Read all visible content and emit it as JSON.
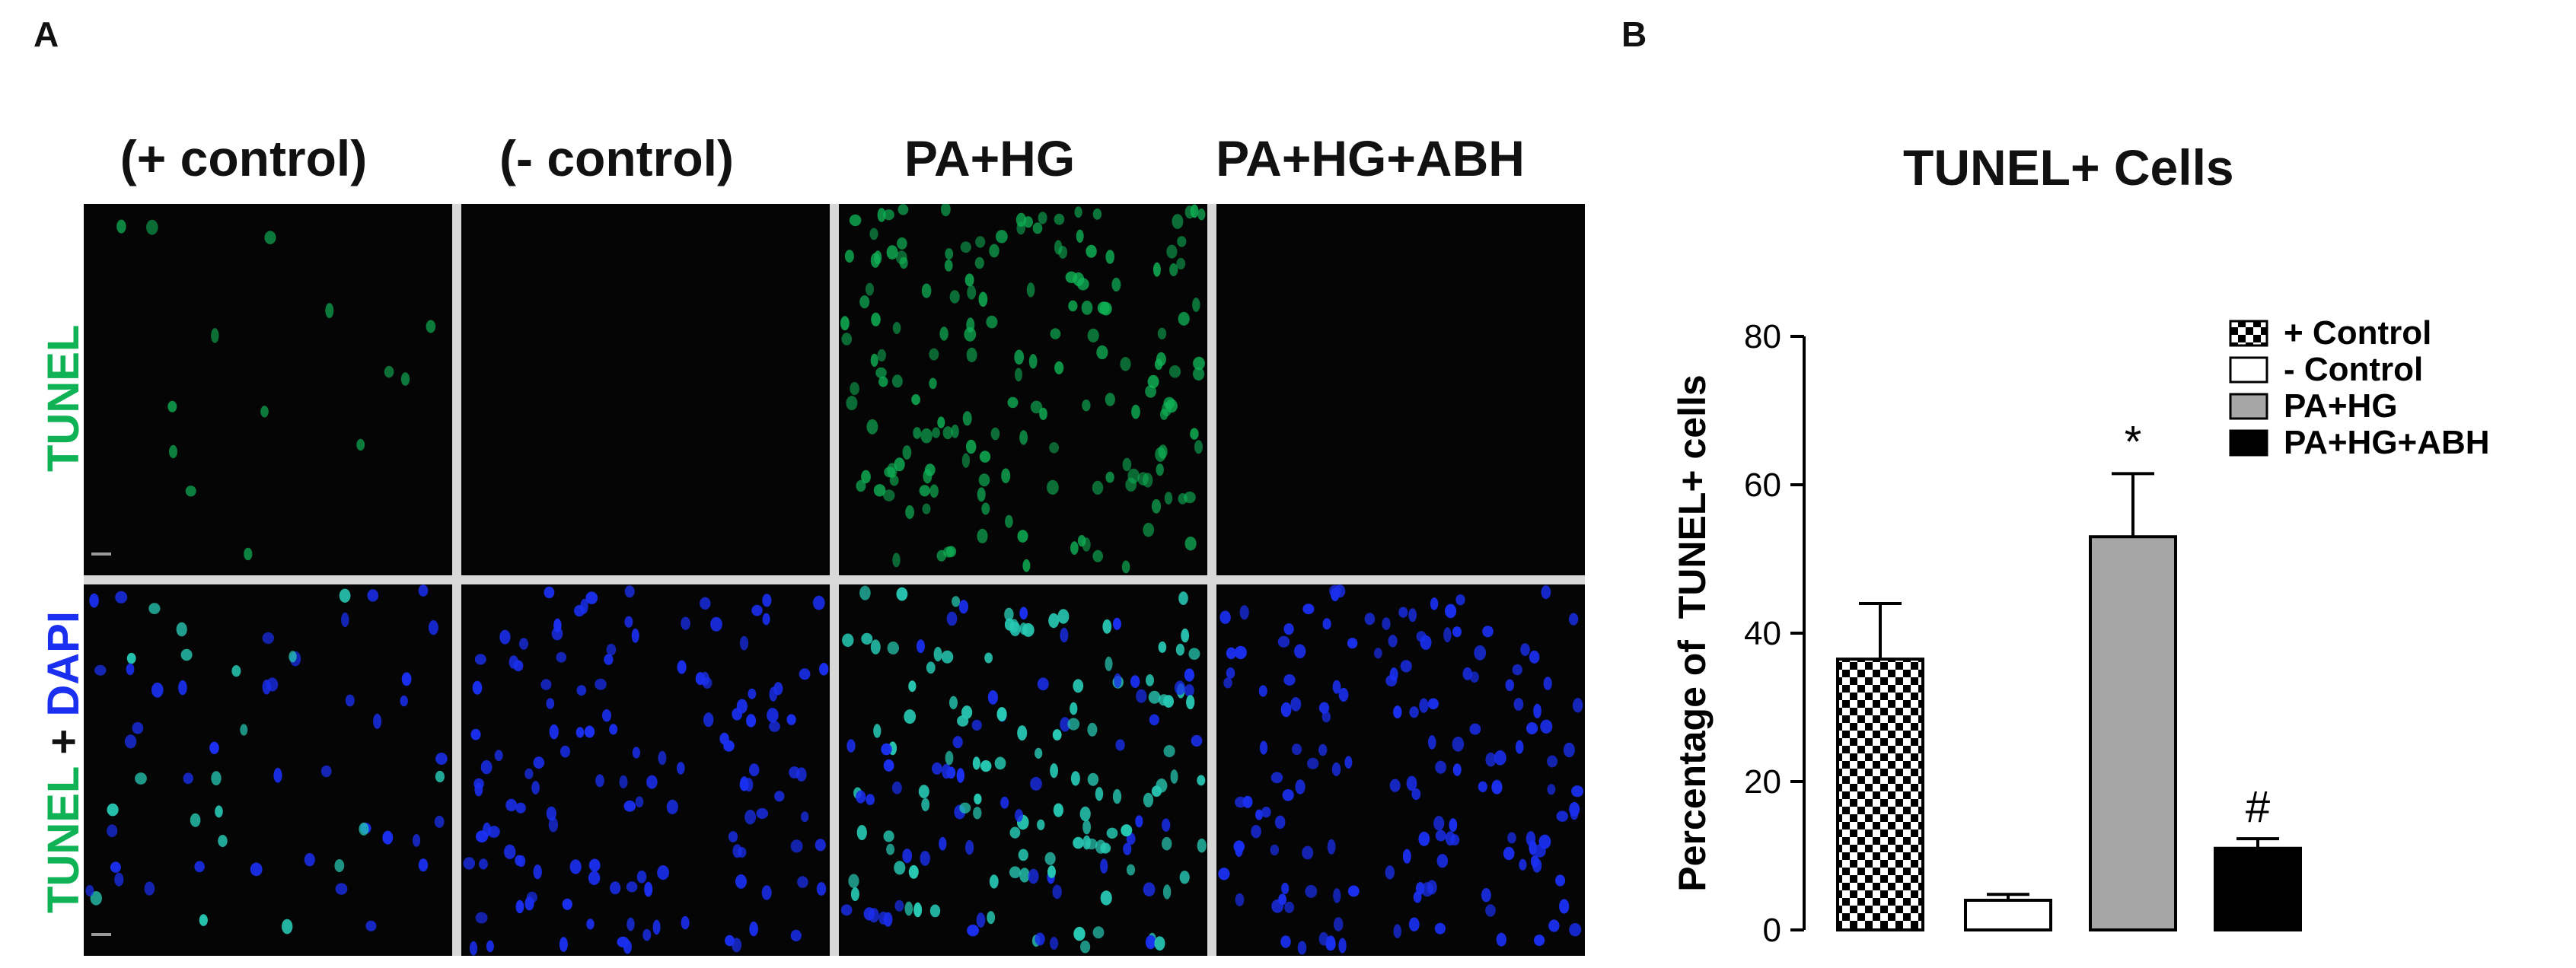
{
  "panels": {
    "a": "A",
    "b": "B"
  },
  "micrograph": {
    "columns": [
      "(+ control)",
      "(- control)",
      "PA+HG",
      "PA+HG+ABH"
    ],
    "row_tunel": {
      "text": "TUNEL",
      "color": "#10b256"
    },
    "row_merge": {
      "part1": "TUNEL",
      "part2": " + ",
      "part3": "DAPI"
    },
    "colors": {
      "tunel": "#10b256",
      "dapi": "#1a2ff0",
      "merge": "#27c9b4"
    }
  },
  "chart_data": {
    "type": "bar",
    "title": "TUNEL+ Cells",
    "ylabel": "Percentage of  TUNEL+ cells",
    "xlabel": "",
    "ylim": [
      0,
      80
    ],
    "yticks": [
      0,
      20,
      40,
      60,
      80
    ],
    "categories": [
      "+ Control",
      "- Control",
      "PA+HG",
      "PA+HG+ABH"
    ],
    "values": [
      36.5,
      4,
      53,
      11
    ],
    "errors": [
      7.5,
      0.8,
      8.5,
      1.3
    ],
    "fills": [
      "checker",
      "#ffffff",
      "#a6a6a6",
      "#000000"
    ],
    "annotations": [
      "",
      "",
      "*",
      "#"
    ],
    "legend": [
      "+ Control",
      "- Control",
      "PA+HG",
      "PA+HG+ABH"
    ],
    "legend_position": "top-right",
    "grid": false
  }
}
